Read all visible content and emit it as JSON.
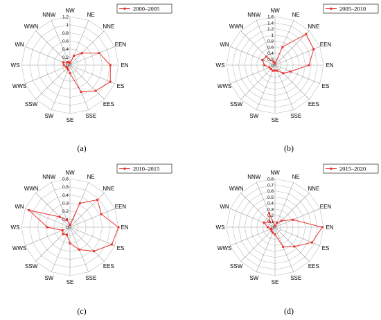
{
  "chart_data": [
    {
      "type": "radar",
      "caption": "(a)",
      "directions": [
        "NW",
        "NE",
        "NNE",
        "EEN",
        "EN",
        "ES",
        "EES",
        "SSE",
        "SE",
        "SW",
        "SSW",
        "WWS",
        "WS",
        "WN",
        "WWN",
        "NNW"
      ],
      "rings": [
        0,
        0.2,
        0.4,
        0.6,
        0.8,
        1.0,
        1.2
      ],
      "tick_labels": [
        "0",
        "0.2",
        "0.4",
        "0.6",
        "0.8",
        "1",
        "1.2"
      ],
      "rmax": 1.2,
      "series": [
        {
          "name": "2000–2005",
          "color": "#e8322e",
          "values": [
            0.05,
            0.25,
            0.42,
            0.78,
            1.0,
            1.08,
            0.9,
            0.72,
            0.2,
            0.12,
            0.1,
            0.1,
            0.15,
            0.18,
            0.1,
            0.08
          ]
        }
      ]
    },
    {
      "type": "radar",
      "caption": "(b)",
      "directions": [
        "NW",
        "NE",
        "NNE",
        "EEN",
        "EN",
        "ES",
        "EES",
        "SSE",
        "SE",
        "SW",
        "SSW",
        "WWS",
        "WS",
        "WN",
        "WWN",
        "NNW"
      ],
      "rings": [
        0,
        0.2,
        0.4,
        0.6,
        0.8,
        1.0,
        1.2,
        1.4,
        1.6
      ],
      "tick_labels": [
        "0",
        "0.2",
        "0.4",
        "0.6",
        "0.8",
        "1",
        "1.2",
        "1.4",
        "1.6"
      ],
      "rmax": 1.6,
      "series": [
        {
          "name": "2005–2010",
          "color": "#e8322e",
          "values": [
            0.05,
            0.65,
            1.45,
            1.38,
            1.12,
            0.55,
            0.38,
            0.2,
            0.18,
            0.2,
            0.18,
            0.2,
            0.35,
            0.45,
            0.4,
            0.12
          ]
        }
      ]
    },
    {
      "type": "radar",
      "caption": "(c)",
      "directions": [
        "NW",
        "NE",
        "NNE",
        "EEN",
        "EN",
        "ES",
        "EES",
        "SSE",
        "SE",
        "SW",
        "SSW",
        "WWS",
        "WS",
        "WN",
        "WWN",
        "NNW"
      ],
      "rings": [
        0,
        0.1,
        0.2,
        0.3,
        0.4,
        0.5,
        0.6
      ],
      "tick_labels": [
        "0",
        "0.1",
        "0.2",
        "0.3",
        "0.4",
        "0.5",
        "0.6"
      ],
      "rmax": 0.6,
      "series": [
        {
          "name": "2010–2015",
          "color": "#e8322e",
          "values": [
            0.03,
            0.32,
            0.48,
            0.42,
            0.6,
            0.56,
            0.42,
            0.3,
            0.2,
            0.1,
            0.12,
            0.1,
            0.28,
            0.55,
            0.18,
            0.1
          ]
        }
      ]
    },
    {
      "type": "radar",
      "caption": "(d)",
      "directions": [
        "NW",
        "NE",
        "NNE",
        "EEN",
        "EN",
        "ES",
        "EES",
        "SSE",
        "SE",
        "SW",
        "SSW",
        "WWS",
        "WS",
        "WN",
        "WWN",
        "NNW"
      ],
      "rings": [
        0,
        0.1,
        0.2,
        0.3,
        0.4,
        0.5,
        0.6,
        0.7,
        0.8
      ],
      "tick_labels": [
        "0",
        "0.1",
        "0.2",
        "0.3",
        "0.4",
        "0.5",
        "0.6",
        "0.7",
        "0.8"
      ],
      "rmax": 0.8,
      "series": [
        {
          "name": "2015–2020",
          "color": "#e8322e",
          "values": [
            0.02,
            0.08,
            0.15,
            0.32,
            0.78,
            0.66,
            0.45,
            0.35,
            0.12,
            0.1,
            0.08,
            0.07,
            0.12,
            0.2,
            0.12,
            0.25
          ]
        }
      ]
    }
  ]
}
